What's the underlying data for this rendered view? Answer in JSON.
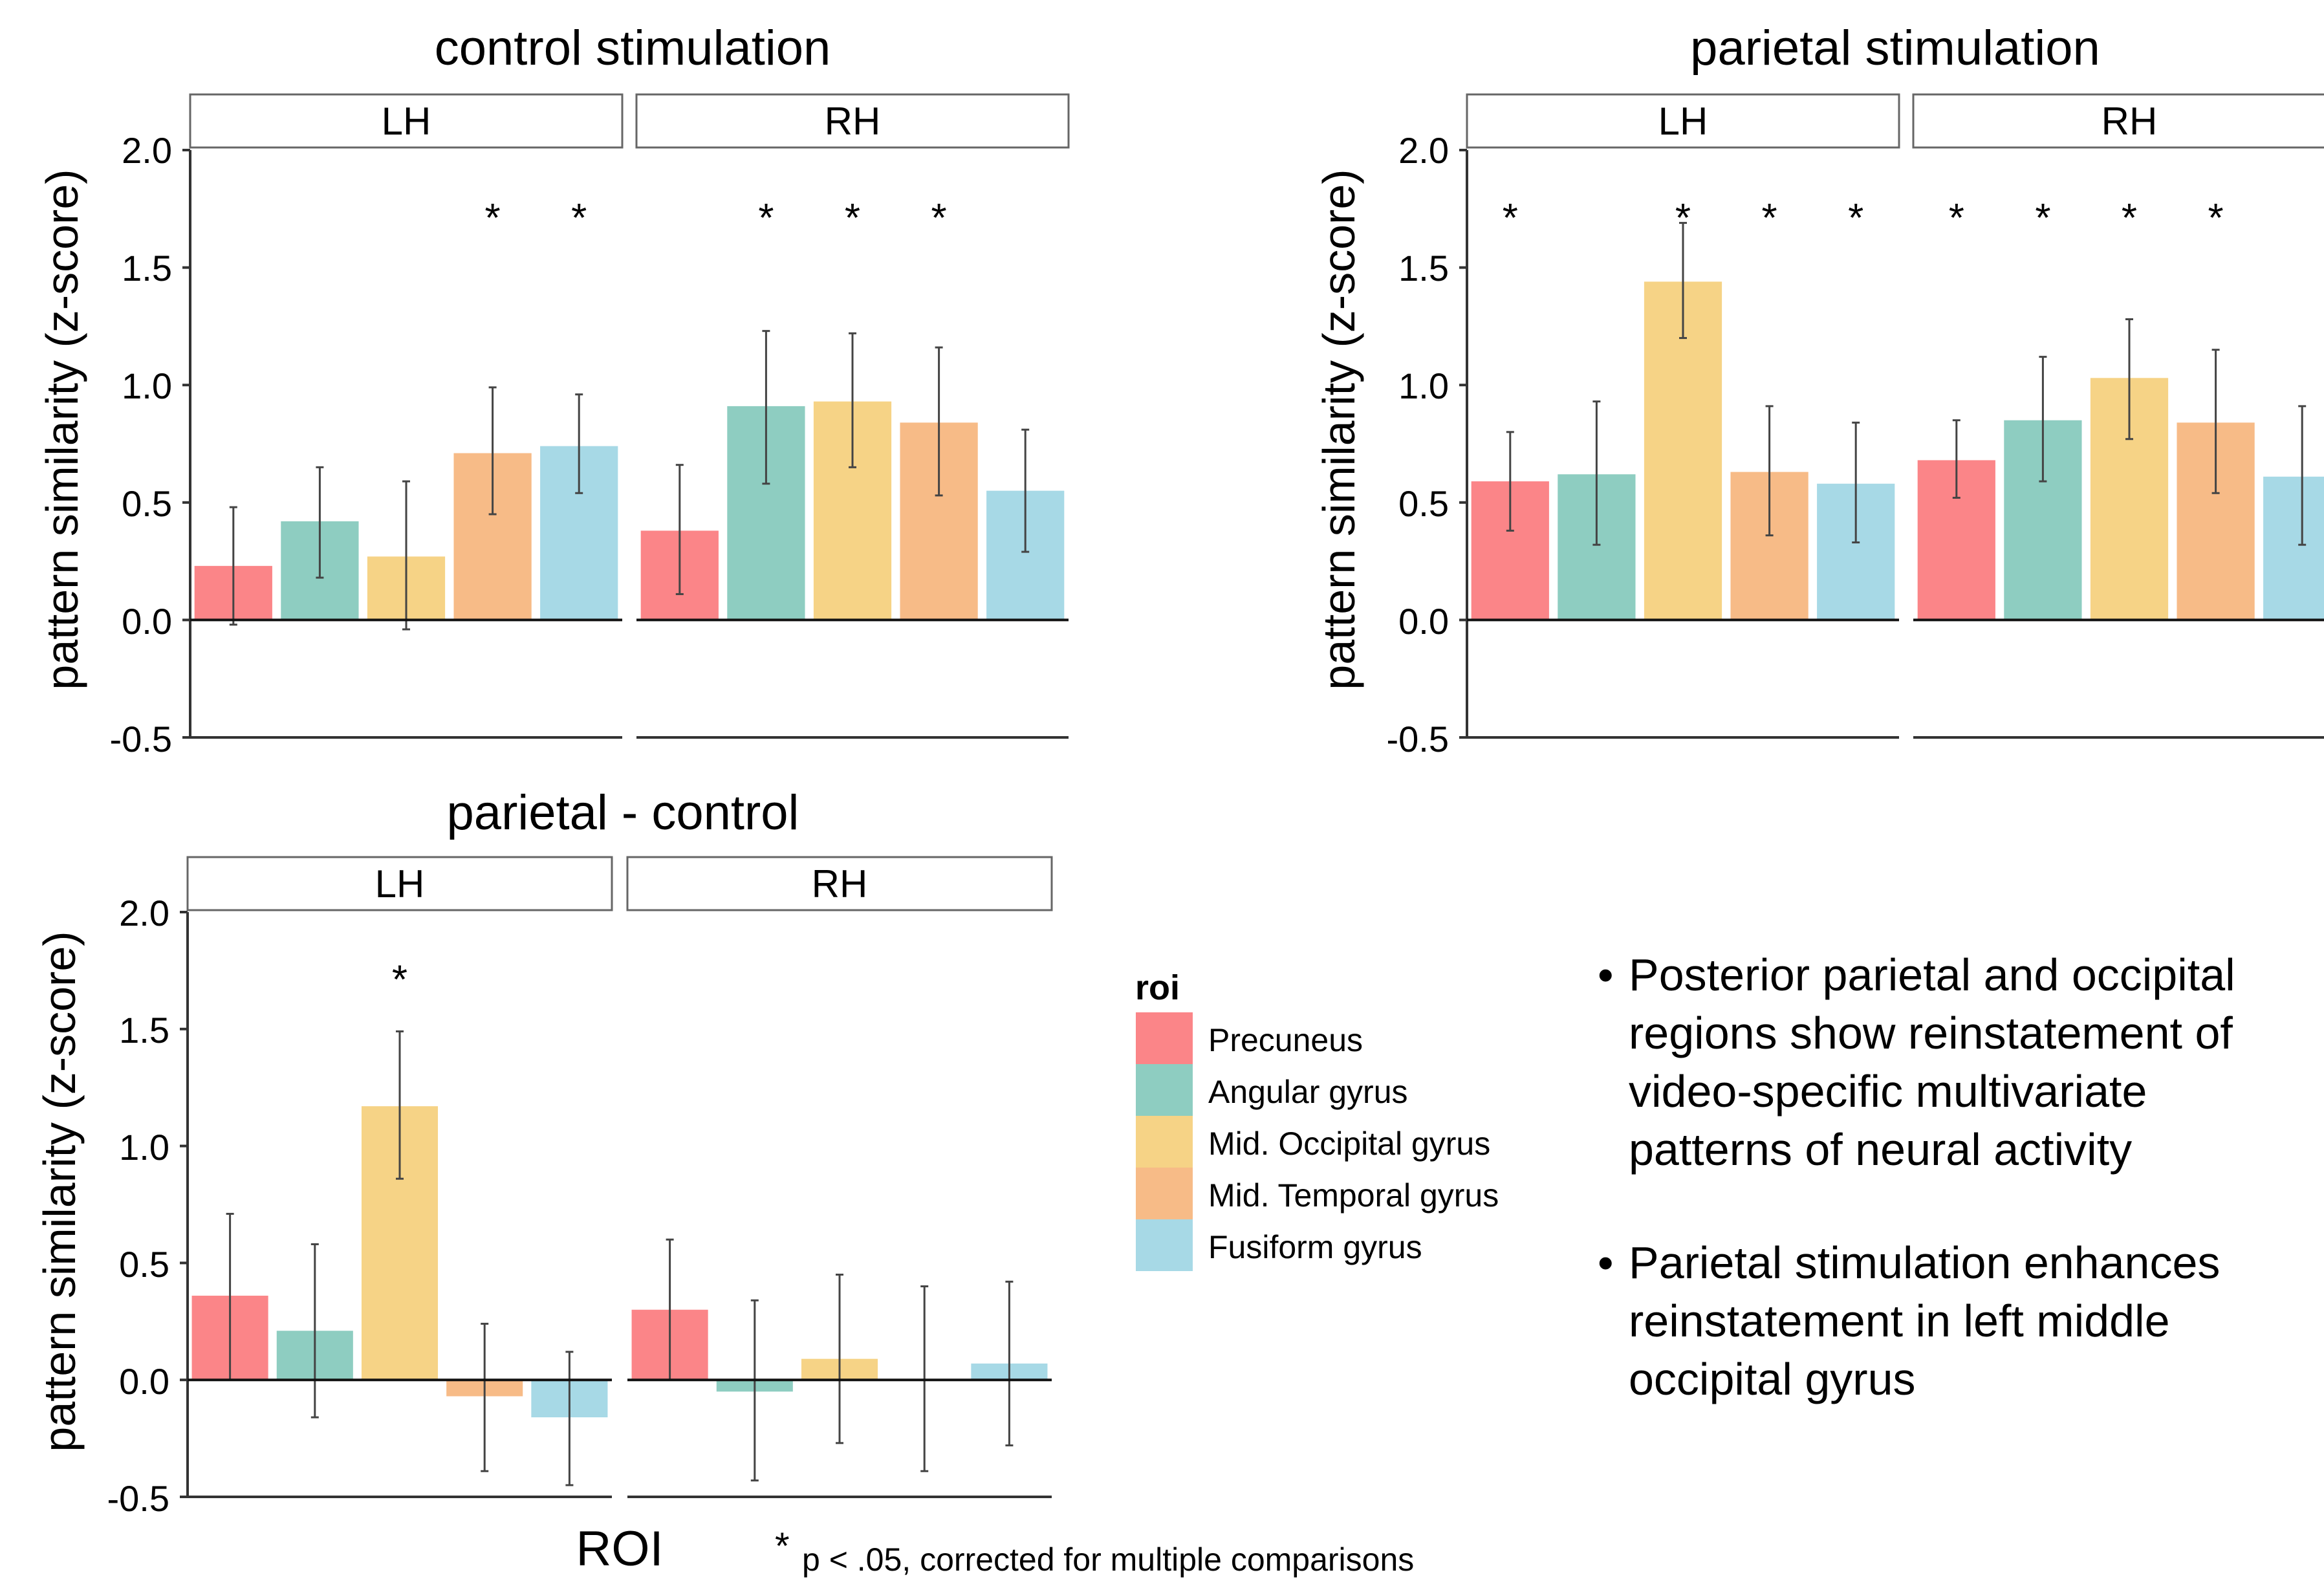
{
  "roi_colors": [
    "#FB8588",
    "#8ECDC1",
    "#F6D386",
    "#F7BB87",
    "#A7D9E6"
  ],
  "chart_data": [
    {
      "type": "bar",
      "title": "control stimulation",
      "ylabel": "pattern similarity (z-score)",
      "ylim": [
        -0.5,
        2.0
      ],
      "yticks": [
        "2.0",
        "1.5",
        "1.0",
        "0.5",
        "0.0",
        "-0.5"
      ],
      "facets": [
        "LH",
        "RH"
      ],
      "categories": [
        "Precuneus",
        "Angular gyrus",
        "Mid. Occipital gyrus",
        "Mid. Temporal gyrus",
        "Fusiform gyrus"
      ],
      "series": [
        {
          "facet": "LH",
          "values": [
            0.23,
            0.42,
            0.27,
            0.71,
            0.74
          ],
          "error_low": [
            -0.02,
            0.18,
            -0.04,
            0.45,
            0.54
          ],
          "error_high": [
            0.48,
            0.65,
            0.59,
            0.99,
            0.96
          ],
          "significant": [
            false,
            false,
            false,
            true,
            true
          ]
        },
        {
          "facet": "RH",
          "values": [
            0.38,
            0.91,
            0.93,
            0.84,
            0.55
          ],
          "error_low": [
            0.11,
            0.58,
            0.65,
            0.53,
            0.29
          ],
          "error_high": [
            0.66,
            1.23,
            1.22,
            1.16,
            0.81
          ],
          "significant": [
            false,
            true,
            true,
            true,
            false
          ]
        }
      ]
    },
    {
      "type": "bar",
      "title": "parietal stimulation",
      "ylabel": "pattern similarity (z-score)",
      "ylim": [
        -0.5,
        2.0
      ],
      "yticks": [
        "2.0",
        "1.5",
        "1.0",
        "0.5",
        "0.0",
        "-0.5"
      ],
      "facets": [
        "LH",
        "RH"
      ],
      "categories": [
        "Precuneus",
        "Angular gyrus",
        "Mid. Occipital gyrus",
        "Mid. Temporal gyrus",
        "Fusiform gyrus"
      ],
      "series": [
        {
          "facet": "LH",
          "values": [
            0.59,
            0.62,
            1.44,
            0.63,
            0.58
          ],
          "error_low": [
            0.38,
            0.32,
            1.2,
            0.36,
            0.33
          ],
          "error_high": [
            0.8,
            0.93,
            1.69,
            0.91,
            0.84
          ],
          "significant": [
            true,
            false,
            true,
            true,
            true
          ]
        },
        {
          "facet": "RH",
          "values": [
            0.68,
            0.85,
            1.03,
            0.84,
            0.61
          ],
          "error_low": [
            0.52,
            0.59,
            0.77,
            0.54,
            0.32
          ],
          "error_high": [
            0.85,
            1.12,
            1.28,
            1.15,
            0.91
          ],
          "significant": [
            true,
            true,
            true,
            true,
            false
          ]
        }
      ]
    },
    {
      "type": "bar",
      "title": "parietal - control",
      "ylabel": "pattern similarity (z-score)",
      "xlabel": "ROI",
      "ylim": [
        -0.5,
        2.0
      ],
      "yticks": [
        "2.0",
        "1.5",
        "1.0",
        "0.5",
        "0.0",
        "-0.5"
      ],
      "facets": [
        "LH",
        "RH"
      ],
      "categories": [
        "Precuneus",
        "Angular gyrus",
        "Mid. Occipital gyrus",
        "Mid. Temporal gyrus",
        "Fusiform gyrus"
      ],
      "series": [
        {
          "facet": "LH",
          "values": [
            0.36,
            0.21,
            1.17,
            -0.07,
            -0.16
          ],
          "error_low": [
            0.0,
            -0.16,
            0.86,
            -0.39,
            -0.45
          ],
          "error_high": [
            0.71,
            0.58,
            1.49,
            0.24,
            0.12
          ],
          "significant": [
            false,
            false,
            true,
            false,
            false
          ]
        },
        {
          "facet": "RH",
          "values": [
            0.3,
            -0.05,
            0.09,
            0.0,
            0.07
          ],
          "error_low": [
            0.0,
            -0.43,
            -0.27,
            -0.39,
            -0.28
          ],
          "error_high": [
            0.6,
            0.34,
            0.45,
            0.4,
            0.42
          ],
          "significant": [
            false,
            false,
            false,
            false,
            false
          ]
        }
      ]
    }
  ],
  "significance_marker": "*",
  "legend": {
    "title": "roi",
    "items": [
      "Precuneus",
      "Angular gyrus",
      "Mid. Occipital gyrus",
      "Mid. Temporal gyrus",
      "Fusiform gyrus"
    ]
  },
  "footnote": {
    "star": "*",
    "text": "p < .05, corrected for multiple comparisons"
  },
  "bullets": [
    "Posterior parietal and occipital regions show reinstatement of video-specific multivariate patterns of neural activity",
    "Parietal stimulation enhances reinstatement in left middle occipital gyrus"
  ]
}
